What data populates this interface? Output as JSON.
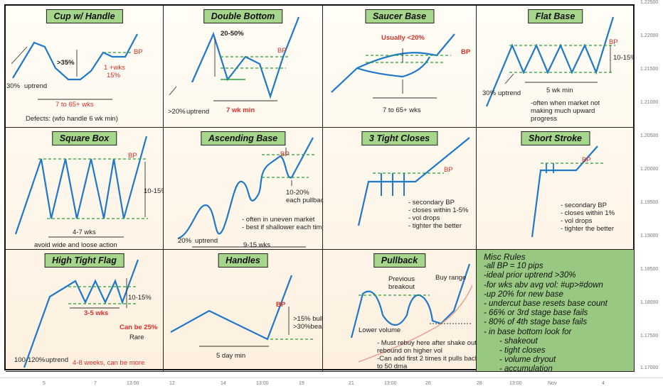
{
  "colors": {
    "line": "#1f78c9",
    "dash": "#2a9d3a",
    "red": "#d9312b",
    "title_bg": "#a6d58c",
    "misc_bg": "#98c881"
  },
  "cells": {
    "cup": {
      "title": "Cup w/ Handle",
      "l1": ">35%",
      "l2": "1 +wks",
      "l3": "15%",
      "l4": "BP",
      "l5": "30%",
      "l6": "uptrend",
      "l7": "7 to 65+ wks",
      "l8": "Defects: (wfo handle 6 wk min)"
    },
    "double": {
      "title": "Double Bottom",
      "l1": "20-50%",
      "l2": "BP",
      "l3": ">20%",
      "l4": "uptrend",
      "l5": "7 wk min"
    },
    "saucer": {
      "title": "Saucer Base",
      "l1": "Usually <20%",
      "l2": "BP",
      "l3": "7 to 65+ wks"
    },
    "flat": {
      "title": "Flat Base",
      "l1": "BP",
      "l2": "10-15%",
      "l3": "30%",
      "l4": "uptrend",
      "l5": "5 wk min",
      "l6": "-often when market not\nmaking much upward\nprogress"
    },
    "square": {
      "title": "Square Box",
      "l1": "BP",
      "l2": "10-15%",
      "l3": "4-7 wks",
      "l4": "avoid wide and loose action"
    },
    "ascending": {
      "title": "Ascending Base",
      "l1": "BP",
      "l2": "10-20%\neach pullback",
      "l3": "- often in uneven market\n- best if shallower each time",
      "l4": "20%",
      "l5": "uptrend",
      "l6": "9-15 wks"
    },
    "tight": {
      "title": "3 Tight Closes",
      "l1": "BP",
      "l2": "- secondary BP\n- closes within 1-5%\n- vol drops\n- tighter the better"
    },
    "short": {
      "title": "Short Stroke",
      "l1": "BP",
      "l2": "- secondary BP\n- closes within 1%\n- vol drops\n- tighter the better"
    },
    "htf": {
      "title": "High Tight Flag",
      "l1": "10-15%",
      "l2": "3-5 wks",
      "l3": "Can be 25%",
      "l4": "Rare",
      "l5": "100-120%",
      "l6": "uptrend",
      "l7": "4-8 weeks, can be more"
    },
    "handles": {
      "title": "Handles",
      "l1": "BP",
      "l2": ">15% bull\n>30%bear",
      "l3": "5 day min"
    },
    "pullback": {
      "title": "Pullback",
      "l1": "Previous\nbreakout",
      "l2": "Buy range",
      "l3": "Lower volume",
      "l4": "- Must rebuy here after shake out &\nrebound on higher vol\n-Can add first 2 times it pulls back\nto 50 dma"
    }
  },
  "misc_rules": {
    "title": "Misc Rules",
    "rules": [
      "-all BP = 10 pips",
      "-ideal prior uptrend >30%",
      "-for wks abv avg vol: #up>#down",
      "-up 20% for new base",
      "- undercut base resets base count",
      "- 66% or 3rd stage base fails",
      "- 80% of 4th stage base fails",
      "- in base bottom look for",
      "- shakeout",
      "- tight closes",
      "- volume dryout",
      "- accumulation"
    ]
  },
  "price_axis": [
    "1.22500",
    "1.22000",
    "1.21500",
    "1.21000",
    "1.20500",
    "1.20000",
    "1.19500",
    "1.19000",
    "1.18500",
    "1.18000",
    "1.17500",
    "1.17000"
  ],
  "time_axis": [
    "5",
    "7",
    "13:00",
    "12",
    "14",
    "13:00",
    "19",
    "21",
    "13:00",
    "26",
    "28",
    "13:00",
    "Nov",
    "4"
  ]
}
